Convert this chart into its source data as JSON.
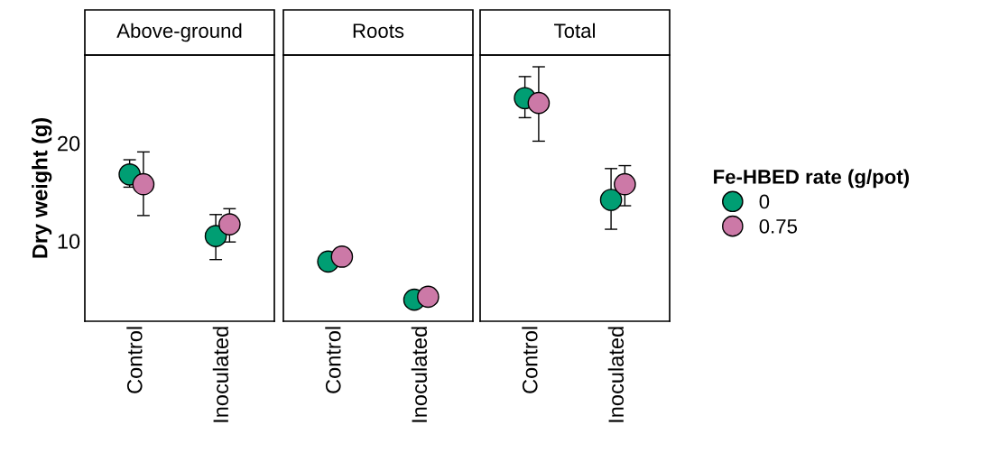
{
  "chart_data": [
    {
      "type": "scatter",
      "title": "Above-ground",
      "ylabel": "Dry weight (g)",
      "categories": [
        "Control",
        "Inoculated"
      ],
      "ylim": [
        1.8,
        29
      ],
      "yticks": [
        10,
        20
      ],
      "grid": false,
      "marker": "circle",
      "legend_title": "Fe-HBED rate (g/pot)",
      "legend": "right",
      "series": [
        {
          "name": "0",
          "color": "#009e73",
          "values": [
            16.8,
            10.5
          ],
          "errors": [
            [
              15.5,
              18.3
            ],
            [
              8.1,
              12.7
            ]
          ]
        },
        {
          "name": "0.75",
          "color": "#cc79a7",
          "values": [
            15.8,
            11.7
          ],
          "errors": [
            [
              12.6,
              19.1
            ],
            [
              9.9,
              13.3
            ]
          ]
        }
      ]
    },
    {
      "type": "scatter",
      "title": "Roots",
      "categories": [
        "Control",
        "Inoculated"
      ],
      "ylim": [
        1.8,
        29
      ],
      "yticks": [
        10,
        20
      ],
      "tick_labels": "x",
      "grid": false,
      "marker": "circle",
      "series": [
        {
          "color": "#009e73",
          "values": [
            7.9,
            4.0
          ]
        },
        {
          "color": "#cc79a7",
          "values": [
            8.4,
            4.3
          ]
        }
      ]
    },
    {
      "type": "scatter",
      "title": "Total",
      "categories": [
        "Control",
        "Inoculated"
      ],
      "ylim": [
        1.8,
        29
      ],
      "yticks": [
        10,
        20
      ],
      "tick_labels": "x",
      "grid": false,
      "marker": "circle",
      "series": [
        {
          "color": "#009e73",
          "values": [
            24.6,
            14.2
          ],
          "errors": [
            [
              22.6,
              26.8
            ],
            [
              11.2,
              17.4
            ]
          ]
        },
        {
          "color": "#cc79a7",
          "values": [
            24.1,
            15.8
          ],
          "errors": [
            [
              20.2,
              27.8
            ],
            [
              13.6,
              17.7
            ]
          ]
        }
      ]
    }
  ]
}
